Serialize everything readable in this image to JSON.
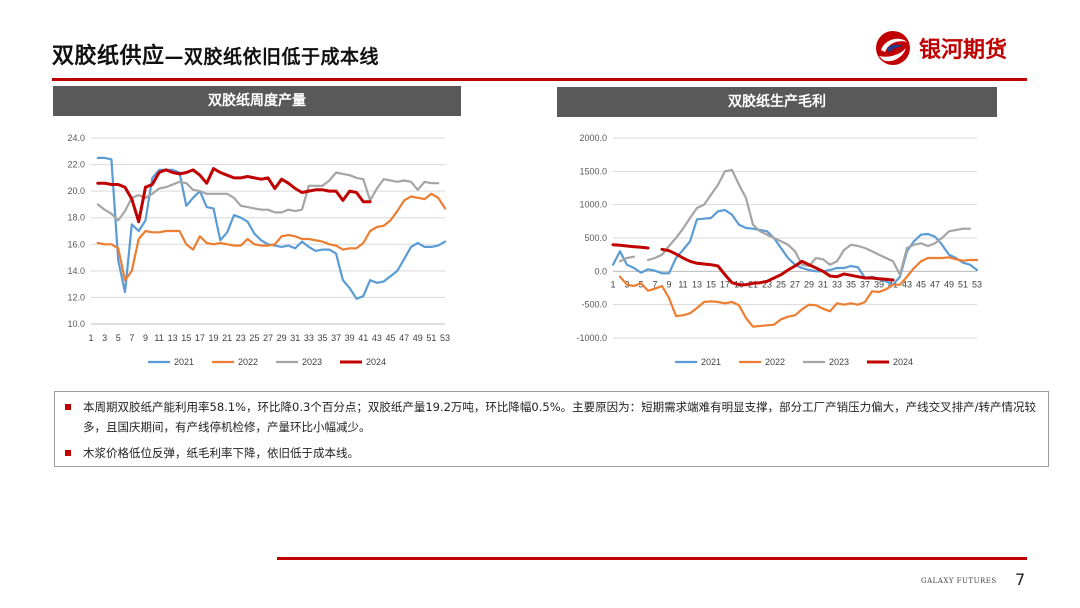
{
  "header": {
    "title_main": "双胶纸供应",
    "title_sub": "—双胶纸依旧低于成本线",
    "logo_text": "银河期货"
  },
  "colors": {
    "accent": "#c00000",
    "panel_header": "#595959",
    "s2021": "#5b9bd5",
    "s2022": "#ed7d31",
    "s2023": "#a5a5a5",
    "s2024": "#c00000"
  },
  "panels": [
    {
      "title": "双胶纸周度产量"
    },
    {
      "title": "双胶纸生产毛利"
    }
  ],
  "chart_data": [
    {
      "type": "line",
      "title": "双胶纸周度产量",
      "x": [
        1,
        2,
        3,
        4,
        5,
        6,
        7,
        8,
        9,
        10,
        11,
        12,
        13,
        14,
        15,
        16,
        17,
        18,
        19,
        20,
        21,
        22,
        23,
        24,
        25,
        26,
        27,
        28,
        29,
        30,
        31,
        32,
        33,
        34,
        35,
        36,
        37,
        38,
        39,
        40,
        41,
        42,
        43,
        44,
        45,
        46,
        47,
        48,
        49,
        50,
        51,
        52,
        53
      ],
      "x_ticks": [
        1,
        3,
        5,
        7,
        9,
        11,
        13,
        15,
        17,
        19,
        21,
        23,
        25,
        27,
        29,
        31,
        33,
        35,
        37,
        39,
        41,
        43,
        45,
        47,
        49,
        51,
        53
      ],
      "ylim": [
        10,
        24
      ],
      "y_ticks": [
        10,
        12,
        14,
        16,
        18,
        20,
        22,
        24
      ],
      "y_tick_labels": [
        "10.0",
        "12.0",
        "14.0",
        "16.0",
        "18.0",
        "20.0",
        "22.0",
        "24.0"
      ],
      "grid": true,
      "legend": "bottom",
      "series": [
        {
          "name": "2021",
          "color": "#5b9bd5",
          "values": [
            null,
            22.5,
            22.5,
            22.4,
            14.8,
            12.4,
            17.5,
            17.0,
            17.8,
            21.0,
            21.6,
            21.6,
            21.6,
            21.4,
            18.9,
            19.5,
            20.0,
            18.8,
            18.7,
            16.3,
            16.9,
            18.2,
            18.0,
            17.7,
            16.8,
            16.3,
            16.0,
            15.9,
            15.8,
            15.9,
            15.7,
            16.2,
            15.8,
            15.5,
            15.6,
            15.6,
            15.3,
            13.3,
            12.7,
            11.9,
            12.1,
            13.3,
            13.1,
            13.2,
            13.6,
            14.0,
            14.9,
            15.8,
            16.1,
            15.8,
            15.8,
            15.9,
            16.2
          ]
        },
        {
          "name": "2022",
          "color": "#ed7d31",
          "values": [
            null,
            16.1,
            16.0,
            16.0,
            15.7,
            13.3,
            14.0,
            16.4,
            17.0,
            16.9,
            16.9,
            17.0,
            17.0,
            17.0,
            16.0,
            15.6,
            16.6,
            16.1,
            16.0,
            16.1,
            16.0,
            15.9,
            15.9,
            16.4,
            16.0,
            15.9,
            15.9,
            16.0,
            16.6,
            16.7,
            16.6,
            16.4,
            16.4,
            16.3,
            16.2,
            16.0,
            15.9,
            15.6,
            15.7,
            15.7,
            16.1,
            17.0,
            17.3,
            17.4,
            17.8,
            18.5,
            19.3,
            19.6,
            19.5,
            19.4,
            19.8,
            19.5,
            18.7
          ]
        },
        {
          "name": "2023",
          "color": "#a5a5a5",
          "values": [
            null,
            19.0,
            18.6,
            18.3,
            17.8,
            18.5,
            19.5,
            19.7,
            19.5,
            19.8,
            20.2,
            20.3,
            20.5,
            20.7,
            20.6,
            20.1,
            20.0,
            19.8,
            19.8,
            19.8,
            19.8,
            19.5,
            18.9,
            18.8,
            18.7,
            18.6,
            18.6,
            18.4,
            18.4,
            18.6,
            18.5,
            18.6,
            20.4,
            20.4,
            20.4,
            20.8,
            21.4,
            21.3,
            21.2,
            21.0,
            20.9,
            19.3,
            20.2,
            20.9,
            20.8,
            20.7,
            20.8,
            20.7,
            20.1,
            20.7,
            20.6,
            20.6,
            null
          ]
        },
        {
          "name": "2024",
          "color": "#c00000",
          "values": [
            null,
            20.6,
            20.6,
            20.5,
            20.5,
            20.3,
            19.4,
            17.7,
            20.3,
            20.5,
            21.4,
            21.6,
            21.4,
            21.3,
            21.4,
            21.6,
            21.2,
            20.6,
            21.7,
            21.4,
            21.2,
            21.0,
            21.0,
            21.1,
            21.0,
            20.9,
            21.0,
            20.2,
            20.9,
            20.6,
            20.2,
            19.9,
            20.0,
            20.1,
            20.1,
            20.0,
            20.0,
            19.3,
            20.0,
            19.9,
            19.2,
            19.2,
            null,
            null,
            null,
            null,
            null,
            null,
            null,
            null,
            null,
            null,
            null
          ]
        }
      ]
    },
    {
      "type": "line",
      "title": "双胶纸生产毛利",
      "x": [
        1,
        2,
        3,
        4,
        5,
        6,
        7,
        8,
        9,
        10,
        11,
        12,
        13,
        14,
        15,
        16,
        17,
        18,
        19,
        20,
        21,
        22,
        23,
        24,
        25,
        26,
        27,
        28,
        29,
        30,
        31,
        32,
        33,
        34,
        35,
        36,
        37,
        38,
        39,
        40,
        41,
        42,
        43,
        44,
        45,
        46,
        47,
        48,
        49,
        50,
        51,
        52,
        53
      ],
      "x_ticks": [
        1,
        3,
        5,
        7,
        9,
        11,
        13,
        15,
        17,
        19,
        21,
        23,
        25,
        27,
        29,
        31,
        33,
        35,
        37,
        39,
        41,
        43,
        45,
        47,
        49,
        51,
        53
      ],
      "ylim": [
        -1000,
        2000
      ],
      "y_ticks": [
        -1000,
        -500,
        0,
        500,
        1000,
        1500,
        2000
      ],
      "y_tick_labels": [
        "-1000.0",
        "-500.0",
        "0.0",
        "500.0",
        "1000.0",
        "1500.0",
        "2000.0"
      ],
      "grid": true,
      "legend": "bottom",
      "series": [
        {
          "name": "2021",
          "color": "#5b9bd5",
          "values": [
            100,
            300,
            100,
            50,
            -20,
            30,
            10,
            -30,
            -30,
            200,
            320,
            450,
            780,
            790,
            800,
            900,
            920,
            850,
            700,
            650,
            640,
            620,
            600,
            500,
            350,
            200,
            100,
            50,
            20,
            0,
            0,
            20,
            50,
            50,
            80,
            60,
            -100,
            -80,
            -120,
            -150,
            -200,
            -80,
            300,
            450,
            550,
            560,
            520,
            400,
            250,
            200,
            130,
            100,
            20
          ]
        },
        {
          "name": "2022",
          "color": "#ed7d31",
          "values": [
            null,
            -80,
            -200,
            -220,
            -180,
            -290,
            -260,
            -220,
            -400,
            -670,
            -660,
            -630,
            -550,
            -460,
            -450,
            -460,
            -480,
            -460,
            -510,
            -700,
            -830,
            -820,
            -810,
            -800,
            -720,
            -680,
            -660,
            -570,
            -500,
            -510,
            -560,
            -600,
            -480,
            -500,
            -480,
            -500,
            -460,
            -300,
            -310,
            -270,
            -200,
            -200,
            -80,
            50,
            150,
            200,
            200,
            200,
            210,
            180,
            160,
            170,
            170
          ]
        },
        {
          "name": "2023",
          "color": "#a5a5a5",
          "values": [
            null,
            150,
            200,
            220,
            null,
            170,
            200,
            250,
            380,
            500,
            640,
            800,
            950,
            1000,
            1150,
            1300,
            1500,
            1520,
            1300,
            1100,
            700,
            600,
            550,
            500,
            450,
            400,
            300,
            100,
            80,
            200,
            180,
            100,
            150,
            320,
            400,
            380,
            350,
            300,
            250,
            200,
            150,
            -50,
            350,
            400,
            420,
            380,
            420,
            500,
            600,
            620,
            640,
            640,
            null
          ]
        },
        {
          "name": "2024",
          "color": "#c00000",
          "values": [
            400,
            390,
            380,
            370,
            360,
            350,
            null,
            330,
            310,
            260,
            200,
            150,
            120,
            110,
            100,
            80,
            -50,
            -170,
            -200,
            -200,
            -180,
            -170,
            -150,
            -100,
            -50,
            20,
            80,
            150,
            100,
            50,
            0,
            -70,
            -80,
            -40,
            -60,
            -80,
            -100,
            -100,
            -110,
            -120,
            -130,
            null,
            null,
            null,
            null,
            null,
            null,
            null,
            null,
            null,
            null,
            null,
            null
          ]
        }
      ]
    }
  ],
  "notes": [
    "本周期双胶纸产能利用率58.1%，环比降0.3个百分点；双胶纸产量19.2万吨，环比降幅0.5%。主要原因为：短期需求端难有明显支撑，部分工厂产销压力偏大，产线交叉排产/转产情况较多，且国庆期间，有产线停机检修，产量环比小幅减少。",
    "木浆价格低位反弹，纸毛利率下降，依旧低于成本线。"
  ],
  "footer": {
    "brand": "GALAXY FUTURES",
    "page": "7"
  }
}
